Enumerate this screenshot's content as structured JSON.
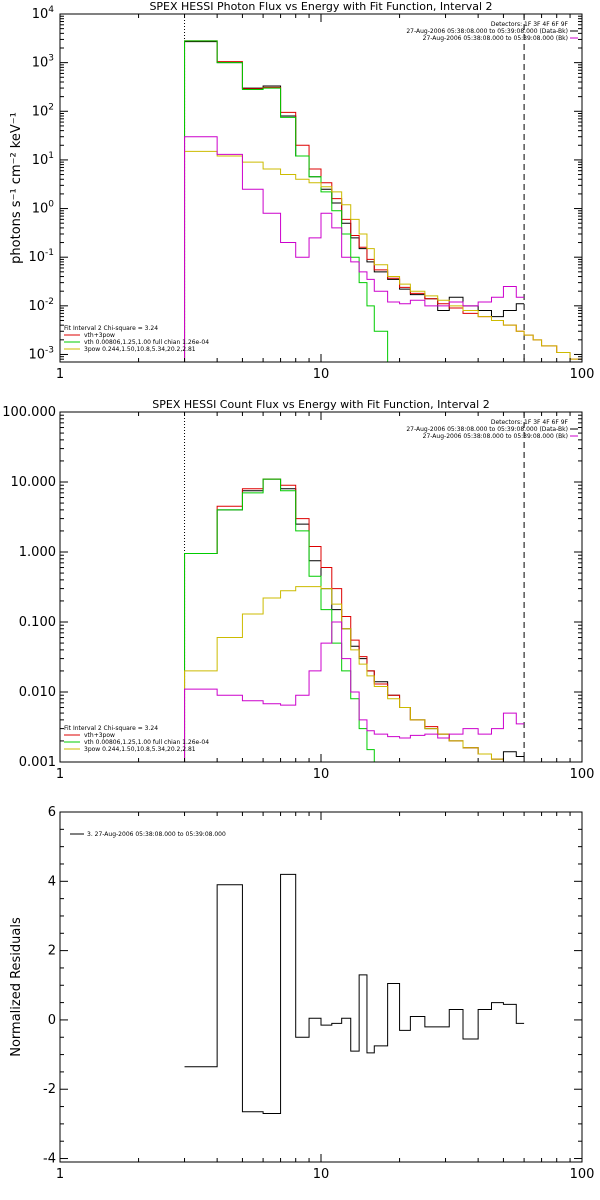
{
  "chart_data": [
    {
      "type": "line",
      "step": true,
      "title": "SPEX HESSI Photon Flux vs Energy with Fit Function, Interval 2",
      "ylabel": "photons s⁻¹ cm⁻² keV⁻¹",
      "xlabel": "",
      "xscale": "log",
      "yscale": "log",
      "xlim": [
        1,
        100
      ],
      "ylim": [
        0.0007,
        10000
      ],
      "xticks": [
        {
          "v": 1,
          "label": "1"
        },
        {
          "v": 10,
          "label": "10"
        },
        {
          "v": 100,
          "label": "100"
        }
      ],
      "yticks": [
        {
          "exp": "-3"
        },
        {
          "exp": "-2"
        },
        {
          "exp": "-1"
        },
        {
          "exp": "0"
        },
        {
          "exp": "1"
        },
        {
          "exp": "2"
        },
        {
          "exp": "3"
        },
        {
          "exp": "4"
        }
      ],
      "tick_base": "10",
      "vlines": [
        {
          "x": 3,
          "style": "dotted"
        },
        {
          "x": 60,
          "style": "dashed"
        }
      ],
      "info_top": [
        "Detectors: 1F 3F 4F 6F 9F",
        "27-Aug-2006 05:38:08.000 to 05:39:08.000 (Data-Bk)",
        "27-Aug-2006 05:38:08.000 to 05:39:08.000 (Bk)"
      ],
      "info_bottom": [
        "Fit Interval 2   Chi-square = 3.24",
        "vth+3pow",
        "vth 0.00806,1.25,1.00  full chian 1.26e-04",
        "3pow 0.244,1.50,10.8,5.34,20.2,2.81"
      ],
      "series": [
        {
          "legend": "info_top.1",
          "color": "#000000",
          "edges": [
            3,
            4,
            5,
            6,
            7,
            8,
            9,
            10,
            11,
            12,
            13,
            14,
            15,
            16,
            18,
            20,
            22,
            25,
            28,
            31,
            35,
            40,
            45,
            50,
            56,
            60
          ],
          "values": [
            2700,
            1000,
            300,
            330,
            80,
            12,
            4.5,
            2.5,
            1.3,
            0.5,
            0.25,
            0.15,
            0.08,
            0.05,
            0.035,
            0.022,
            0.017,
            0.014,
            0.008,
            0.015,
            0.01,
            0.008,
            0.006,
            0.008,
            0.011
          ]
        },
        {
          "legend": "info_bottom.1",
          "color": "#dd0000",
          "edges": [
            3,
            4,
            5,
            6,
            7,
            8,
            9,
            10,
            11,
            12,
            13,
            14,
            15,
            16,
            18,
            20,
            22,
            25,
            28,
            31,
            35,
            40,
            45,
            50,
            56,
            60,
            65,
            70,
            80,
            90,
            100
          ],
          "values": [
            2800,
            1050,
            290,
            310,
            95,
            20,
            6.5,
            3.4,
            1.6,
            0.6,
            0.28,
            0.16,
            0.09,
            0.055,
            0.037,
            0.024,
            0.018,
            0.014,
            0.011,
            0.009,
            0.007,
            0.006,
            0.005,
            0.004,
            0.003,
            0.0025,
            0.002,
            0.0015,
            0.0011,
            0.0008
          ]
        },
        {
          "legend": "info_bottom.2",
          "color": "#00cc00",
          "edges": [
            3,
            4,
            5,
            6,
            7,
            8,
            9,
            10,
            11,
            12,
            13,
            14,
            15,
            16,
            18,
            20
          ],
          "values": [
            2800,
            1000,
            280,
            300,
            75,
            12,
            4.5,
            2.2,
            0.9,
            0.3,
            0.1,
            0.03,
            0.01,
            0.003,
            0.0007
          ]
        },
        {
          "legend": "info_bottom.3",
          "color": "#ccbb00",
          "edges": [
            3,
            4,
            5,
            6,
            7,
            8,
            9,
            10,
            11,
            12,
            13,
            14,
            15,
            16,
            18,
            20,
            22,
            25,
            28,
            31,
            35,
            40,
            45,
            50,
            56,
            60,
            65,
            70,
            80,
            90,
            100
          ],
          "values": [
            15,
            12,
            9,
            6.5,
            5,
            4,
            3.4,
            2.8,
            2.2,
            1.2,
            0.6,
            0.3,
            0.15,
            0.07,
            0.04,
            0.028,
            0.02,
            0.016,
            0.013,
            0.01,
            0.008,
            0.006,
            0.005,
            0.004,
            0.003,
            0.0025,
            0.002,
            0.0015,
            0.0011,
            0.0008
          ]
        },
        {
          "legend": "info_top.2",
          "color": "#cc00cc",
          "edges": [
            3,
            4,
            5,
            6,
            7,
            8,
            9,
            10,
            11,
            12,
            13,
            14,
            15,
            16,
            18,
            20,
            22,
            25,
            28,
            31,
            35,
            40,
            45,
            50,
            56,
            60
          ],
          "values": [
            30,
            13,
            2.5,
            0.8,
            0.2,
            0.1,
            0.25,
            0.8,
            0.4,
            0.1,
            0.08,
            0.05,
            0.035,
            0.02,
            0.012,
            0.011,
            0.013,
            0.01,
            0.01,
            0.012,
            0.01,
            0.012,
            0.015,
            0.025,
            0.015
          ]
        }
      ]
    },
    {
      "type": "line",
      "step": true,
      "title": "SPEX HESSI Count Flux vs Energy with Fit Function, Interval 2",
      "ylabel": "",
      "xlabel": "",
      "xscale": "log",
      "yscale": "log",
      "xlim": [
        1,
        100
      ],
      "ylim": [
        0.001,
        100
      ],
      "xticks": [
        {
          "v": 1,
          "label": "1"
        },
        {
          "v": 10,
          "label": "10"
        },
        {
          "v": 100,
          "label": "100"
        }
      ],
      "yticks": [
        {
          "v": 0.001,
          "label": "0.001"
        },
        {
          "v": 0.01,
          "label": "0.010"
        },
        {
          "v": 0.1,
          "label": "0.100"
        },
        {
          "v": 1,
          "label": "1.000"
        },
        {
          "v": 10,
          "label": "10.000"
        },
        {
          "v": 100,
          "label": "100.000"
        }
      ],
      "vlines": [
        {
          "x": 3,
          "style": "dotted"
        },
        {
          "x": 60,
          "style": "dashed"
        }
      ],
      "info_top": [
        "Detectors: 1F 3F 4F 6F 9F",
        "27-Aug-2006 05:38:08.000 to 05:39:08.000 (Data-Bk)",
        "27-Aug-2006 05:38:08.000 to 05:39:08.000 (Bk)"
      ],
      "info_bottom": [
        "Fit Interval 2   Chi-square = 3.24",
        "vth+3pow",
        "vth 0.00806,1.25,1.00  full chian 1.26e-04",
        "3pow 0.244,1.50,10.8,5.34,20.2,2.81"
      ],
      "series": [
        {
          "legend": "info_top.1",
          "color": "#000000",
          "edges": [
            3,
            4,
            5,
            6,
            7,
            8,
            9,
            10,
            11,
            12,
            13,
            14,
            15,
            16,
            18,
            20,
            22,
            25,
            28,
            31,
            35,
            40,
            45,
            50,
            56,
            60
          ],
          "values": [
            0.95,
            4,
            7.5,
            11,
            8,
            2.5,
            0.75,
            0.3,
            0.15,
            0.08,
            0.045,
            0.03,
            0.02,
            0.014,
            0.009,
            0.006,
            0.004,
            0.003,
            0.0025,
            0.002,
            0.0016,
            0.0013,
            0.0011,
            0.0014,
            0.0012
          ]
        },
        {
          "legend": "info_bottom.1",
          "color": "#dd0000",
          "edges": [
            3,
            4,
            5,
            6,
            7,
            8,
            9,
            10,
            11,
            12,
            13,
            14,
            15,
            16,
            18,
            20,
            22,
            25,
            28,
            31,
            35,
            40,
            45,
            50,
            56,
            60
          ],
          "values": [
            0.95,
            4.5,
            8,
            11,
            9,
            3,
            1.2,
            0.6,
            0.3,
            0.12,
            0.055,
            0.032,
            0.02,
            0.013,
            0.009,
            0.006,
            0.004,
            0.0032,
            0.0025,
            0.002,
            0.0016,
            0.0013,
            0.0011,
            0.001,
            0.0009
          ]
        },
        {
          "legend": "info_bottom.2",
          "color": "#00cc00",
          "edges": [
            3,
            4,
            5,
            6,
            7,
            8,
            9,
            10,
            11,
            12,
            13,
            14,
            15,
            16,
            18
          ],
          "values": [
            0.95,
            4,
            7,
            11,
            7.5,
            2,
            0.45,
            0.15,
            0.05,
            0.02,
            0.008,
            0.003,
            0.0015,
            0.0006
          ]
        },
        {
          "legend": "info_bottom.3",
          "color": "#ccbb00",
          "edges": [
            3,
            4,
            5,
            6,
            7,
            8,
            9,
            10,
            11,
            12,
            13,
            14,
            15,
            16,
            18,
            20,
            22,
            25,
            28,
            31,
            35,
            40,
            45,
            50,
            56,
            60
          ],
          "values": [
            0.02,
            0.06,
            0.13,
            0.22,
            0.28,
            0.32,
            0.32,
            0.3,
            0.18,
            0.08,
            0.04,
            0.025,
            0.017,
            0.012,
            0.008,
            0.006,
            0.004,
            0.003,
            0.0025,
            0.002,
            0.0016,
            0.0013,
            0.0011,
            0.001,
            0.0009
          ]
        },
        {
          "legend": "info_top.2",
          "color": "#cc00cc",
          "edges": [
            3,
            4,
            5,
            6,
            7,
            8,
            9,
            10,
            11,
            12,
            13,
            14,
            15,
            16,
            18,
            20,
            22,
            25,
            28,
            31,
            35,
            40,
            45,
            50,
            56,
            60
          ],
          "values": [
            0.011,
            0.009,
            0.0075,
            0.0068,
            0.0065,
            0.009,
            0.02,
            0.05,
            0.1,
            0.03,
            0.01,
            0.004,
            0.0028,
            0.0025,
            0.0023,
            0.0022,
            0.0024,
            0.0025,
            0.0022,
            0.0025,
            0.003,
            0.0025,
            0.003,
            0.005,
            0.0035
          ]
        }
      ]
    },
    {
      "type": "line",
      "step": true,
      "title": "",
      "ylabel": "Normalized Residuals",
      "xlabel": "",
      "xscale": "log",
      "yscale": "linear",
      "xlim": [
        1,
        100
      ],
      "ylim": [
        -4.1,
        6
      ],
      "xticks": [
        {
          "v": 1,
          "label": "1"
        },
        {
          "v": 10,
          "label": "10"
        },
        {
          "v": 100,
          "label": "100"
        }
      ],
      "yticks": [
        {
          "v": -4,
          "label": "-4"
        },
        {
          "v": -2,
          "label": "-2"
        },
        {
          "v": 0,
          "label": "0"
        },
        {
          "v": 2,
          "label": "2"
        },
        {
          "v": 4,
          "label": "4"
        },
        {
          "v": 6,
          "label": "6"
        }
      ],
      "vlines": [],
      "info_top": [
        "3. 27-Aug-2006 05:38:08.000 to 05:39:08.000"
      ],
      "info_bottom": [],
      "series": [
        {
          "legend": "info_top.0",
          "color": "#000000",
          "edges": [
            3,
            4,
            5,
            6,
            7,
            8,
            9,
            10,
            11,
            12,
            13,
            14,
            15,
            16,
            18,
            20,
            22,
            25,
            28,
            31,
            35,
            40,
            45,
            50,
            56,
            60
          ],
          "values": [
            -1.35,
            3.9,
            -2.65,
            -2.7,
            4.2,
            -0.5,
            0.05,
            -0.15,
            -0.1,
            0.05,
            -0.9,
            1.3,
            -0.95,
            -0.75,
            1.05,
            -0.3,
            0.1,
            -0.2,
            -0.2,
            0.3,
            -0.55,
            0.3,
            0.5,
            0.45,
            -0.1
          ]
        }
      ]
    }
  ]
}
